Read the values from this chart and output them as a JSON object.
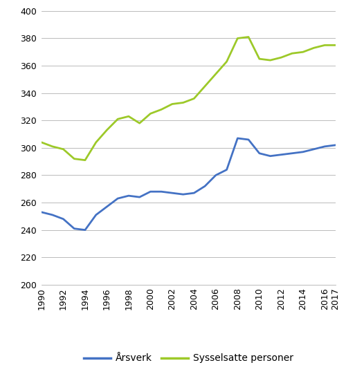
{
  "years": [
    1990,
    1991,
    1992,
    1993,
    1994,
    1995,
    1996,
    1997,
    1998,
    1999,
    2000,
    2001,
    2002,
    2003,
    2004,
    2005,
    2006,
    2007,
    2008,
    2009,
    2010,
    2011,
    2012,
    2013,
    2014,
    2015,
    2016,
    2017
  ],
  "arsverk": [
    253,
    251,
    248,
    241,
    240,
    251,
    257,
    263,
    265,
    264,
    268,
    268,
    267,
    266,
    267,
    272,
    280,
    284,
    307,
    306,
    296,
    294,
    295,
    296,
    297,
    299,
    301,
    302
  ],
  "sysselsatte": [
    304,
    301,
    299,
    292,
    291,
    304,
    313,
    321,
    323,
    318,
    325,
    328,
    332,
    333,
    336,
    345,
    354,
    363,
    380,
    381,
    365,
    364,
    366,
    369,
    370,
    373,
    375,
    375
  ],
  "arsverk_color": "#4472c4",
  "sysselsatte_color": "#9dc929",
  "ylim": [
    200,
    400
  ],
  "yticks": [
    200,
    220,
    240,
    260,
    280,
    300,
    320,
    340,
    360,
    380,
    400
  ],
  "xticks": [
    1990,
    1992,
    1994,
    1996,
    1998,
    2000,
    2002,
    2004,
    2006,
    2008,
    2010,
    2012,
    2014,
    2016,
    2017
  ],
  "legend_arsverk": "Årsverk",
  "legend_sysselsatte": "Sysselsatte personer",
  "line_width": 2.0,
  "background_color": "#ffffff",
  "grid_color": "#b0b0b0"
}
